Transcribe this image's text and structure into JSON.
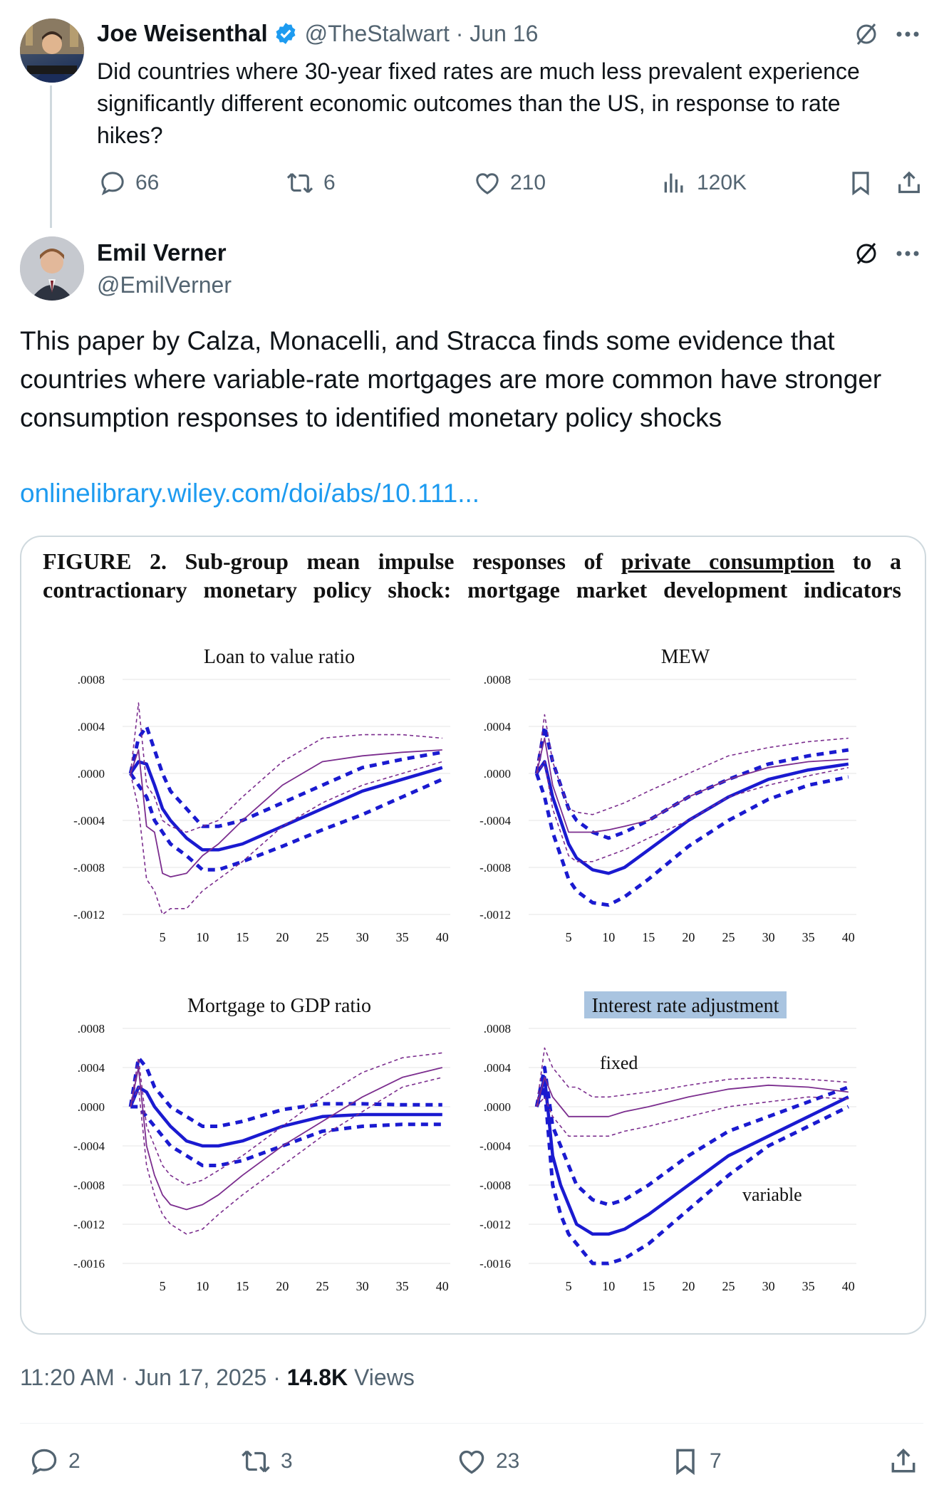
{
  "quoted_tweet": {
    "author_name": "Joe Weisenthal",
    "handle_date": "@TheStalwart · Jun 16",
    "text": "Did countries where 30-year fixed rates are much less prevalent experience significantly different economic outcomes than the US, in response to rate hikes?",
    "replies": "66",
    "retweets": "6",
    "likes": "210",
    "views": "120K"
  },
  "tweet": {
    "author_name": "Emil Verner",
    "handle": "@EmilVerner",
    "text": "This paper by Calza, Monacelli, and Stracca finds some evidence that countries where variable-rate mortgages are more common have stronger consumption responses to identified monetary policy shocks",
    "link": "onlinelibrary.wiley.com/doi/abs/10.111...",
    "time": "11:20 AM · Jun 17, 2025 · ",
    "views_count": "14.8K",
    "views_label": " Views",
    "replies": "2",
    "retweets": "3",
    "likes": "23",
    "bookmarks": "7"
  },
  "figure": {
    "title_part1": "FIGURE 2. Sub-group mean impulse responses of ",
    "title_underlined": "private consumption",
    "title_part2": " to a contractionary monetary policy shock: mortgage market development indicators"
  },
  "colors": {
    "blue": "#1a1ad0",
    "purple": "#7b2d8e",
    "link": "#1d9bf0",
    "highlight": "#a9c4e0"
  },
  "chart_data": [
    {
      "type": "line",
      "title": "Loan to value ratio",
      "x": [
        1,
        2,
        3,
        4,
        5,
        6,
        8,
        10,
        12,
        15,
        20,
        25,
        30,
        35,
        40
      ],
      "ylim": [
        -0.0012,
        0.0008
      ],
      "yticks": [
        ".0008",
        ".0004",
        ".0000",
        "-.0004",
        "-.0008",
        "-.0012"
      ],
      "xticks": [
        "5",
        "10",
        "15",
        "20",
        "25",
        "30",
        "35",
        "40"
      ],
      "series": [
        {
          "name": "blue mean",
          "values": [
            0.0,
            0.0001,
            8e-05,
            -0.0001,
            -0.0003,
            -0.0004,
            -0.00055,
            -0.00065,
            -0.00065,
            -0.0006,
            -0.00045,
            -0.0003,
            -0.00015,
            -5e-05,
            5e-05
          ]
        },
        {
          "name": "blue upper",
          "values": [
            0.0,
            0.0003,
            0.0004,
            0.0002,
            0.0,
            -0.00015,
            -0.0003,
            -0.00045,
            -0.00045,
            -0.0004,
            -0.00025,
            -0.0001,
            5e-05,
            0.00012,
            0.00018
          ]
        },
        {
          "name": "blue lower",
          "values": [
            0.0,
            -0.0001,
            -0.0002,
            -0.0004,
            -0.0005,
            -0.0006,
            -0.0007,
            -0.00082,
            -0.00082,
            -0.00075,
            -0.00062,
            -0.00048,
            -0.00035,
            -0.0002,
            -5e-05
          ]
        },
        {
          "name": "purple mean",
          "values": [
            0.0,
            0.0002,
            -0.00045,
            -0.0005,
            -0.00085,
            -0.00088,
            -0.00085,
            -0.0007,
            -0.0006,
            -0.0004,
            -0.0001,
            0.0001,
            0.00015,
            0.00018,
            0.0002
          ]
        },
        {
          "name": "purple upper",
          "values": [
            0.0,
            0.0006,
            -0.0001,
            -0.0002,
            -0.0004,
            -0.00045,
            -0.0005,
            -0.00045,
            -0.0004,
            -0.0002,
            0.0001,
            0.0003,
            0.00033,
            0.00033,
            0.0003
          ]
        },
        {
          "name": "purple lower",
          "values": [
            0.0,
            -0.0003,
            -0.0009,
            -0.001,
            -0.0012,
            -0.00115,
            -0.00115,
            -0.001,
            -0.0009,
            -0.00075,
            -0.00045,
            -0.00025,
            -0.0001,
            0.0,
            0.0001
          ]
        }
      ]
    },
    {
      "type": "line",
      "title": "MEW",
      "x": [
        1,
        2,
        3,
        4,
        5,
        6,
        8,
        10,
        12,
        15,
        20,
        25,
        30,
        35,
        40
      ],
      "ylim": [
        -0.0012,
        0.0008
      ],
      "yticks": [
        ".0008",
        ".0004",
        ".0000",
        "-.0004",
        "-.0008",
        "-.0012"
      ],
      "xticks": [
        "5",
        "10",
        "15",
        "20",
        "25",
        "30",
        "35",
        "40"
      ],
      "series": [
        {
          "name": "blue mean",
          "values": [
            0.0,
            0.0001,
            -0.0002,
            -0.0004,
            -0.0006,
            -0.00072,
            -0.00082,
            -0.00085,
            -0.0008,
            -0.00065,
            -0.0004,
            -0.0002,
            -5e-05,
            3e-05,
            8e-05
          ]
        },
        {
          "name": "blue upper",
          "values": [
            0.0,
            0.0004,
            0.0001,
            -0.0001,
            -0.0003,
            -0.0004,
            -0.0005,
            -0.00055,
            -0.0005,
            -0.0004,
            -0.0002,
            -5e-05,
            8e-05,
            0.00015,
            0.0002
          ]
        },
        {
          "name": "blue lower",
          "values": [
            0.0,
            -0.0002,
            -0.0005,
            -0.0007,
            -0.0009,
            -0.001,
            -0.0011,
            -0.00112,
            -0.00105,
            -0.0009,
            -0.00062,
            -0.0004,
            -0.00022,
            -0.0001,
            -3e-05
          ]
        },
        {
          "name": "purple mean",
          "values": [
            0.0,
            0.0003,
            -0.0001,
            -0.0003,
            -0.0005,
            -0.0005,
            -0.0005,
            -0.00048,
            -0.00045,
            -0.0004,
            -0.0002,
            -5e-05,
            5e-05,
            0.0001,
            0.00012
          ]
        },
        {
          "name": "purple upper",
          "values": [
            0.0,
            0.0005,
            0.0001,
            -0.0001,
            -0.0003,
            -0.00033,
            -0.00035,
            -0.0003,
            -0.00025,
            -0.00015,
            0.0,
            0.00015,
            0.00022,
            0.00027,
            0.0003
          ]
        },
        {
          "name": "purple lower",
          "values": [
            0.0,
            0.0001,
            -0.0003,
            -0.0005,
            -0.0007,
            -0.00075,
            -0.00075,
            -0.0007,
            -0.00065,
            -0.00055,
            -0.0004,
            -0.0002,
            -0.0001,
            -2e-05,
            5e-05
          ]
        }
      ]
    },
    {
      "type": "line",
      "title": "Mortgage to GDP ratio",
      "x": [
        1,
        2,
        3,
        4,
        5,
        6,
        8,
        10,
        12,
        15,
        20,
        25,
        30,
        35,
        40
      ],
      "ylim": [
        -0.0016,
        0.0008
      ],
      "yticks": [
        ".0008",
        ".0004",
        ".0000",
        "-.0004",
        "-.0008",
        "-.0012",
        "-.0016"
      ],
      "xticks": [
        "5",
        "10",
        "15",
        "20",
        "25",
        "30",
        "35",
        "40"
      ],
      "series": [
        {
          "name": "blue mean",
          "values": [
            0.0,
            0.0002,
            0.00015,
            0.0,
            -0.0001,
            -0.0002,
            -0.00035,
            -0.0004,
            -0.0004,
            -0.00035,
            -0.0002,
            -0.0001,
            -8e-05,
            -8e-05,
            -8e-05
          ]
        },
        {
          "name": "blue upper",
          "values": [
            0.0,
            0.0005,
            0.0004,
            0.0002,
            0.0001,
            0.0,
            -0.0001,
            -0.0002,
            -0.0002,
            -0.00015,
            -3e-05,
            3e-05,
            3e-05,
            2e-05,
            2e-05
          ]
        },
        {
          "name": "blue lower",
          "values": [
            0.0,
            0.0,
            -0.0001,
            -0.0002,
            -0.0003,
            -0.0004,
            -0.0005,
            -0.0006,
            -0.0006,
            -0.00055,
            -0.0004,
            -0.00025,
            -0.0002,
            -0.00018,
            -0.00018
          ]
        },
        {
          "name": "purple mean",
          "values": [
            0.0,
            0.0004,
            -0.0004,
            -0.0007,
            -0.0009,
            -0.001,
            -0.00105,
            -0.001,
            -0.0009,
            -0.0007,
            -0.0004,
            -0.00015,
            0.0001,
            0.0003,
            0.0004
          ]
        },
        {
          "name": "purple upper",
          "values": [
            0.0,
            0.0005,
            -0.0002,
            -0.0004,
            -0.0006,
            -0.0007,
            -0.0008,
            -0.00075,
            -0.00065,
            -0.0005,
            -0.0002,
            0.0001,
            0.00035,
            0.0005,
            0.00055
          ]
        },
        {
          "name": "purple lower",
          "values": [
            0.0,
            0.0002,
            -0.0006,
            -0.0009,
            -0.0011,
            -0.0012,
            -0.0013,
            -0.00125,
            -0.0011,
            -0.0009,
            -0.0006,
            -0.0003,
            -5e-05,
            0.0002,
            0.0003
          ]
        }
      ]
    },
    {
      "type": "line",
      "title": "Interest rate adjustment",
      "annotations": [
        "fixed",
        "variable"
      ],
      "x": [
        1,
        2,
        3,
        4,
        5,
        6,
        8,
        10,
        12,
        15,
        20,
        25,
        30,
        35,
        40
      ],
      "ylim": [
        -0.0016,
        0.0008
      ],
      "yticks": [
        ".0008",
        ".0004",
        ".0000",
        "-.0004",
        "-.0008",
        "-.0012",
        "-.0016"
      ],
      "xticks": [
        "5",
        "10",
        "15",
        "20",
        "25",
        "30",
        "35",
        "40"
      ],
      "series": [
        {
          "name": "blue mean",
          "values": [
            0.0,
            0.0003,
            -0.0005,
            -0.0008,
            -0.001,
            -0.0012,
            -0.0013,
            -0.0013,
            -0.00125,
            -0.0011,
            -0.0008,
            -0.0005,
            -0.0003,
            -0.0001,
            0.0001
          ]
        },
        {
          "name": "blue upper",
          "values": [
            0.0,
            0.0004,
            -0.0002,
            -0.0004,
            -0.0006,
            -0.0008,
            -0.00095,
            -0.001,
            -0.00095,
            -0.0008,
            -0.0005,
            -0.00025,
            -0.0001,
            5e-05,
            0.0002
          ]
        },
        {
          "name": "blue lower",
          "values": [
            0.0,
            0.0002,
            -0.0008,
            -0.0011,
            -0.0013,
            -0.0014,
            -0.0016,
            -0.0016,
            -0.00155,
            -0.0014,
            -0.00105,
            -0.0007,
            -0.0004,
            -0.0002,
            0.0
          ]
        },
        {
          "name": "purple mean",
          "values": [
            0.0,
            0.0003,
            0.0001,
            0.0,
            -0.0001,
            -0.0001,
            -0.0001,
            -0.0001,
            -5e-05,
            0.0,
            0.0001,
            0.00018,
            0.00022,
            0.0002,
            0.00015
          ]
        },
        {
          "name": "purple upper",
          "values": [
            0.0,
            0.0006,
            0.0004,
            0.0003,
            0.0002,
            0.0002,
            0.0001,
            0.0001,
            0.00012,
            0.00015,
            0.00022,
            0.00028,
            0.0003,
            0.00028,
            0.00025
          ]
        },
        {
          "name": "purple lower",
          "values": [
            0.0,
            0.0001,
            -0.0001,
            -0.0002,
            -0.0003,
            -0.0003,
            -0.0003,
            -0.0003,
            -0.00025,
            -0.0002,
            -0.0001,
            0.0,
            5e-05,
            0.0001,
            8e-05
          ]
        }
      ]
    }
  ]
}
